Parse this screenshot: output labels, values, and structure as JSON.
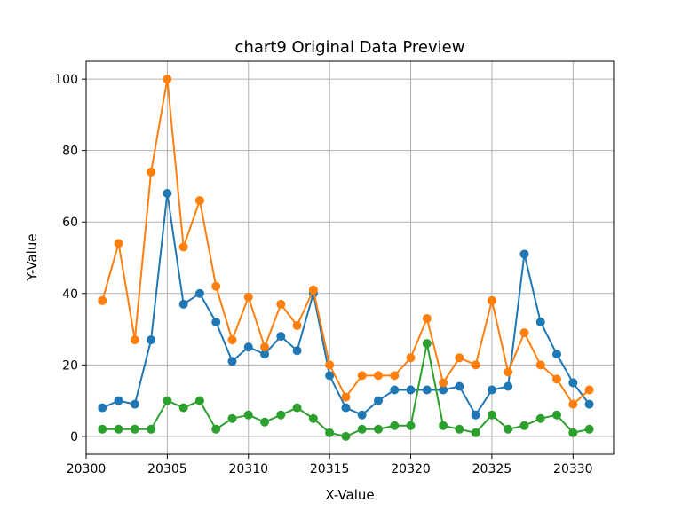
{
  "chart_data": {
    "type": "line",
    "title": "chart9 Original Data Preview",
    "xlabel": "X-Value",
    "ylabel": "Y-Value",
    "xlim": [
      20300.0,
      20332.5
    ],
    "ylim": [
      -5,
      105
    ],
    "xticks": [
      20300,
      20305,
      20310,
      20315,
      20320,
      20325,
      20330
    ],
    "yticks": [
      0,
      20,
      40,
      60,
      80,
      100
    ],
    "grid": true,
    "markers": true,
    "x": [
      20301,
      20302,
      20303,
      20304,
      20305,
      20306,
      20307,
      20308,
      20309,
      20310,
      20311,
      20312,
      20313,
      20314,
      20315,
      20316,
      20317,
      20318,
      20319,
      20320,
      20321,
      20322,
      20323,
      20324,
      20325,
      20326,
      20327,
      20328,
      20329,
      20330,
      20331
    ],
    "series": [
      {
        "color": "#1f77b4",
        "values": [
          8,
          10,
          9,
          27,
          68,
          37,
          40,
          32,
          21,
          25,
          23,
          28,
          24,
          40,
          17,
          8,
          6,
          10,
          13,
          13,
          13,
          13,
          14,
          6,
          13,
          14,
          51,
          32,
          23,
          15,
          9
        ]
      },
      {
        "color": "#ff7f0e",
        "values": [
          38,
          54,
          27,
          74,
          100,
          53,
          66,
          42,
          27,
          39,
          25,
          37,
          31,
          41,
          20,
          11,
          17,
          17,
          17,
          22,
          33,
          15,
          22,
          20,
          38,
          18,
          29,
          20,
          16,
          9,
          13
        ]
      },
      {
        "color": "#2ca02c",
        "values": [
          2,
          2,
          2,
          2,
          10,
          8,
          10,
          2,
          5,
          6,
          4,
          6,
          8,
          5,
          1,
          0,
          2,
          2,
          3,
          3,
          26,
          3,
          2,
          1,
          6,
          2,
          3,
          5,
          6,
          1,
          2
        ]
      }
    ]
  }
}
